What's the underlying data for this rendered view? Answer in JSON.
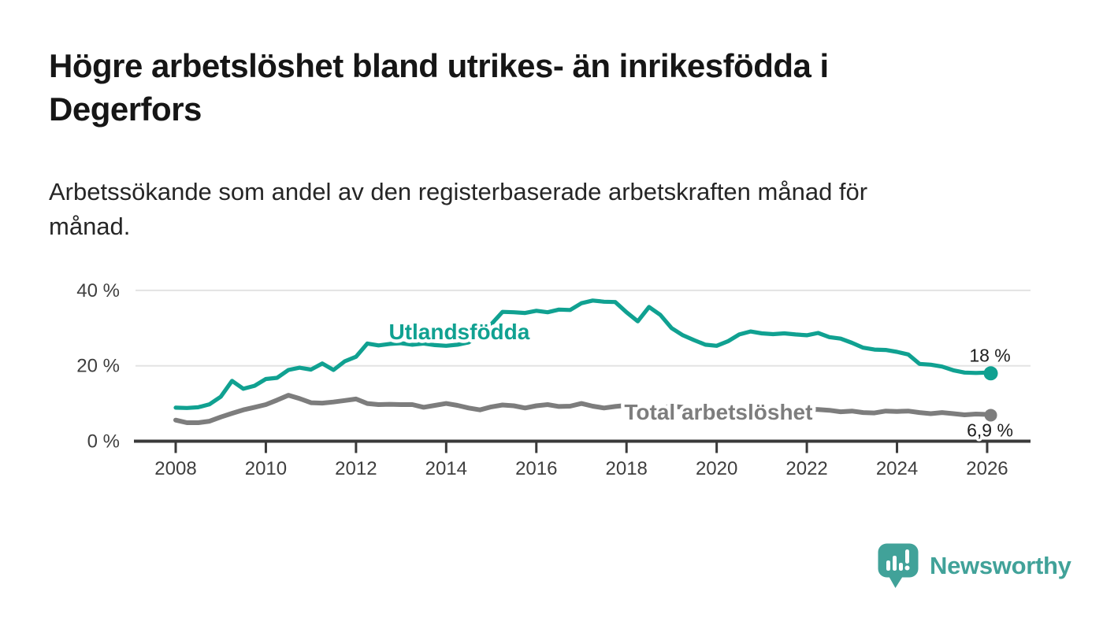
{
  "header": {
    "title_lines": [
      "Högre arbetslöshet bland utrikes- än inrikesfödda i",
      "Degerfors"
    ],
    "subtitle_lines": [
      "Arbetssökande som andel av den registerbaserade arbetskraften månad för",
      "månad."
    ]
  },
  "footer": {
    "brand": "Newsworthy",
    "logo_icon": "speech-bubble-bar-chart-icon"
  },
  "colors": {
    "accent_teal": "#10A191",
    "logo_teal": "#41A299",
    "series_gray": "#7D7D7D",
    "title_text": "#161616",
    "subtitle_text": "#262626",
    "axis_text": "#3F3F3F",
    "end_label_text": "#1E1E1E",
    "gridline": "#E3E3E3",
    "axis_line": "#3A3A3A",
    "background": "#FFFFFF"
  },
  "chart_data": {
    "type": "line",
    "title": "",
    "xlabel": "",
    "ylabel": "",
    "unit": "%",
    "grid": "horizontal",
    "legend": "inline-labels",
    "ylim": [
      0,
      40
    ],
    "xlim": [
      2007.1,
      2026.9
    ],
    "y_ticks": [
      {
        "value": 0,
        "label": "0 %"
      },
      {
        "value": 20,
        "label": "20 %"
      },
      {
        "value": 40,
        "label": "40 %"
      }
    ],
    "x_ticks": [
      {
        "value": 2008,
        "label": "2008"
      },
      {
        "value": 2010,
        "label": "2010"
      },
      {
        "value": 2012,
        "label": "2012"
      },
      {
        "value": 2014,
        "label": "2014"
      },
      {
        "value": 2016,
        "label": "2016"
      },
      {
        "value": 2018,
        "label": "2018"
      },
      {
        "value": 2020,
        "label": "2020"
      },
      {
        "value": 2022,
        "label": "2022"
      },
      {
        "value": 2024,
        "label": "2024"
      },
      {
        "value": 2026,
        "label": "2026"
      }
    ],
    "x": [
      2008,
      2008.25,
      2008.5,
      2008.75,
      2009,
      2009.25,
      2009.5,
      2009.75,
      2010,
      2010.25,
      2010.5,
      2010.75,
      2011,
      2011.25,
      2011.5,
      2011.75,
      2012,
      2012.25,
      2012.5,
      2012.75,
      2013,
      2013.25,
      2013.5,
      2013.75,
      2014,
      2014.25,
      2014.5,
      2014.75,
      2015,
      2015.25,
      2015.5,
      2015.75,
      2016,
      2016.25,
      2016.5,
      2016.75,
      2017,
      2017.25,
      2017.5,
      2017.75,
      2018,
      2018.25,
      2018.5,
      2018.75,
      2019,
      2019.25,
      2019.5,
      2019.75,
      2020,
      2020.25,
      2020.5,
      2020.75,
      2021,
      2021.25,
      2021.5,
      2021.75,
      2022,
      2022.25,
      2022.5,
      2022.75,
      2023,
      2023.25,
      2023.5,
      2023.75,
      2024,
      2024.25,
      2024.5,
      2024.75,
      2025,
      2025.25,
      2025.5,
      2025.75,
      2026,
      2026.08
    ],
    "series": [
      {
        "name": "Utlandsfödda",
        "slug": "utlandsfodda",
        "color": "#10A191",
        "line_width": 5.2,
        "dot_radius": 9,
        "end_label": "18 %",
        "end_value": 18,
        "end_label_position": "above",
        "label_pos": {
          "x": 2014.29,
          "y": 29.1
        },
        "values": [
          8.9,
          8.8,
          9.0,
          9.8,
          11.8,
          16.0,
          13.9,
          14.7,
          16.5,
          16.8,
          18.9,
          19.5,
          19.0,
          20.6,
          18.9,
          21.2,
          22.4,
          25.9,
          25.4,
          25.8,
          26.0,
          25.6,
          25.9,
          25.5,
          25.3,
          25.6,
          26.2,
          28.5,
          31.0,
          34.3,
          34.2,
          34.0,
          34.6,
          34.2,
          34.9,
          34.8,
          36.6,
          37.3,
          37.0,
          36.9,
          34.2,
          31.8,
          35.6,
          33.5,
          30.0,
          28.1,
          26.8,
          25.6,
          25.3,
          26.5,
          28.3,
          29.1,
          28.6,
          28.4,
          28.6,
          28.3,
          28.1,
          28.7,
          27.6,
          27.2,
          26.1,
          24.8,
          24.3,
          24.2,
          23.7,
          23.0,
          20.5,
          20.3,
          19.8,
          18.8,
          18.2,
          18.1,
          18.2,
          18.0
        ]
      },
      {
        "name": "Total arbetslöshet",
        "slug": "total-arbetsloshet",
        "color": "#7D7D7D",
        "line_width": 6,
        "dot_radius": 8,
        "end_label": "6,9 %",
        "end_value": 6.9,
        "end_label_position": "below",
        "label_pos": {
          "x": 2020.04,
          "y": 7.8
        },
        "values": [
          5.6,
          4.9,
          4.9,
          5.3,
          6.4,
          7.4,
          8.3,
          9.0,
          9.7,
          10.9,
          12.2,
          11.3,
          10.2,
          10.1,
          10.4,
          10.8,
          11.2,
          10.0,
          9.7,
          9.8,
          9.7,
          9.7,
          9.0,
          9.5,
          10.0,
          9.5,
          8.8,
          8.3,
          9.1,
          9.6,
          9.4,
          8.8,
          9.4,
          9.7,
          9.2,
          9.3,
          10.0,
          9.3,
          8.8,
          9.2,
          9.5,
          9.0,
          8.6,
          8.8,
          9.3,
          9.0,
          8.5,
          8.3,
          8.4,
          8.7,
          8.9,
          8.6,
          8.5,
          8.3,
          8.2,
          8.4,
          8.5,
          8.4,
          8.2,
          7.8,
          8.0,
          7.6,
          7.5,
          8.0,
          7.9,
          8.0,
          7.6,
          7.3,
          7.6,
          7.3,
          7.0,
          7.2,
          7.1,
          6.9
        ]
      }
    ]
  }
}
